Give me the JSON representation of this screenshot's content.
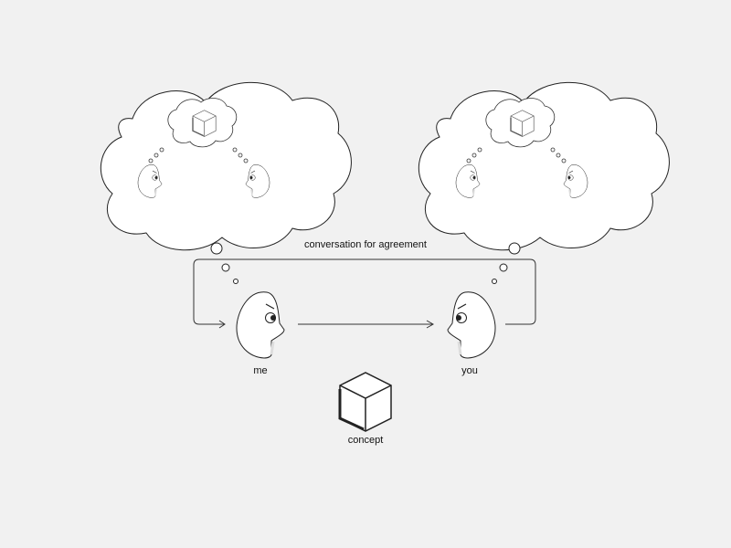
{
  "labels": {
    "conversation": "conversation for agreement",
    "me": "me",
    "you": "you",
    "concept": "concept"
  },
  "colors": {
    "background": "#f1f1f1",
    "stroke": "#222222",
    "fill": "#ffffff",
    "shadow": "#dddddd"
  },
  "icons": {
    "cube": "cube-icon",
    "face": "face-icon",
    "thought_cloud": "thought-cloud-icon"
  }
}
